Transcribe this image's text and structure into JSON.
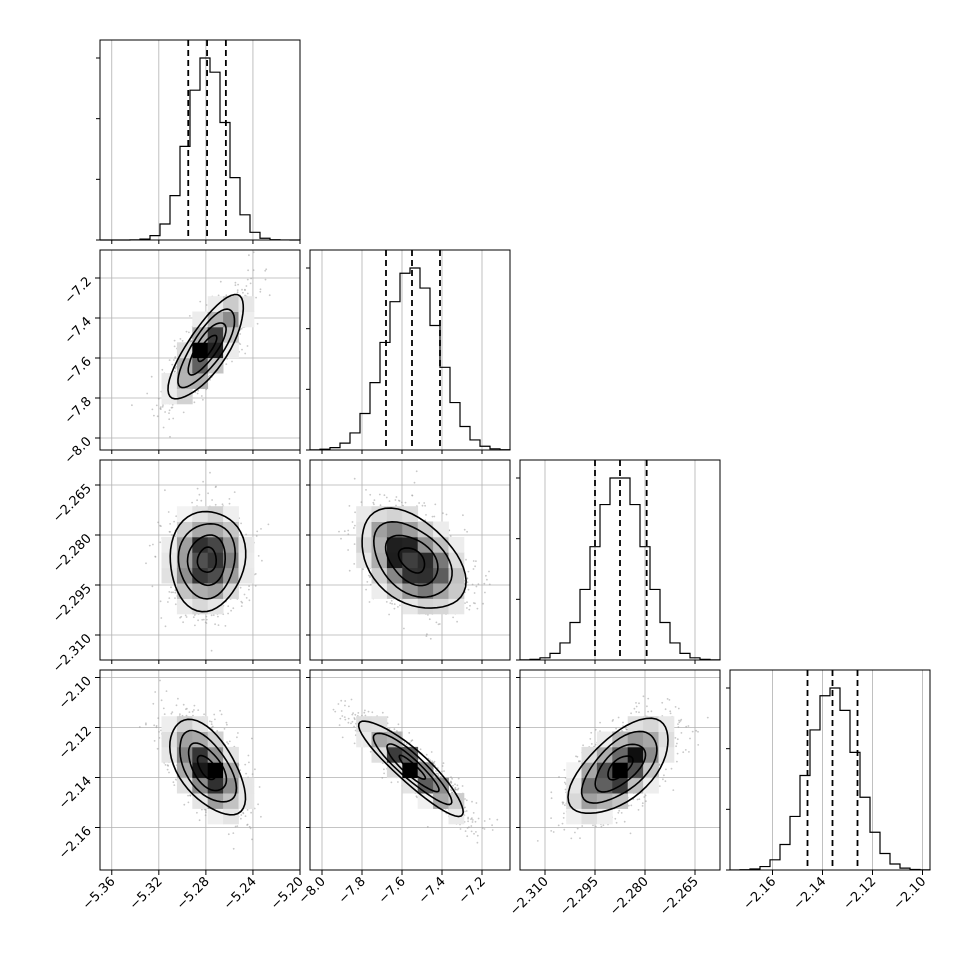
{
  "colors": {
    "background": "#ffffff",
    "foreground": "#000000",
    "grid": "#b0b0b0",
    "density": "#000000",
    "scatter": "#9a9a9a"
  },
  "chart_data": {
    "type": "corner",
    "grid": true,
    "rotated_tick_labels": true,
    "parameters": [
      {
        "range": [
          -5.37,
          -5.2
        ],
        "ticks": [
          -5.36,
          -5.32,
          -5.28,
          -5.24,
          -5.2
        ],
        "tick_labels": [
          "−5.36",
          "−5.32",
          "−5.28",
          "−5.24",
          "−5.20"
        ],
        "mean": -5.279,
        "sigma": 0.016,
        "quantiles": [
          -5.295,
          -5.279,
          -5.263
        ]
      },
      {
        "range": [
          -8.06,
          -7.06
        ],
        "ticks": [
          -8.0,
          -7.8,
          -7.6,
          -7.4,
          -7.2
        ],
        "tick_labels": [
          "−8.0",
          "−7.8",
          "−7.6",
          "−7.4",
          "−7.2"
        ],
        "mean": -7.55,
        "sigma": 0.13,
        "quantiles": [
          -7.68,
          -7.55,
          -7.41
        ]
      },
      {
        "range": [
          -2.3175,
          -2.2575
        ],
        "ticks": [
          -2.31,
          -2.295,
          -2.28,
          -2.265
        ],
        "tick_labels": [
          "−2.310",
          "−2.295",
          "−2.280",
          "−2.265"
        ],
        "mean": -2.2875,
        "sigma": 0.0075,
        "quantiles": [
          -2.295,
          -2.2875,
          -2.2795
        ]
      },
      {
        "range": [
          -2.177,
          -2.097
        ],
        "ticks": [
          -2.16,
          -2.14,
          -2.12,
          -2.1
        ],
        "tick_labels": [
          "−2.16",
          "−2.14",
          "−2.12",
          "−2.10"
        ],
        "mean": -2.136,
        "sigma": 0.0095,
        "quantiles": [
          -2.146,
          -2.136,
          -2.126
        ]
      }
    ],
    "correlations": [
      [
        1.0,
        0.78,
        0.05,
        -0.55
      ],
      [
        0.78,
        1.0,
        -0.4,
        -0.9
      ],
      [
        0.05,
        -0.4,
        1.0,
        0.6
      ],
      [
        -0.55,
        -0.9,
        0.6,
        1.0
      ]
    ],
    "histogram_bins": 20,
    "scatter_points": 1400,
    "contour_levels_sigma": [
      0.5,
      1.0,
      1.5,
      2.0
    ]
  }
}
